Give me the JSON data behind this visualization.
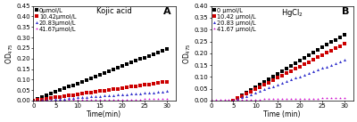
{
  "panel_A": {
    "title": "Kojic acid",
    "label": "A",
    "ylabel": "OD$_{475}$",
    "xlabel": "Time(min)",
    "xlim": [
      0,
      32
    ],
    "ylim": [
      0.0,
      0.45
    ],
    "yticks": [
      0.0,
      0.05,
      0.1,
      0.15,
      0.2,
      0.25,
      0.3,
      0.35,
      0.4,
      0.45
    ],
    "xticks": [
      0,
      5,
      10,
      15,
      20,
      25,
      30
    ],
    "series": [
      {
        "label": "0μmol/L",
        "color": "#000000",
        "marker": "s",
        "slope": 0.0082,
        "intercept": 0.0,
        "start": 0,
        "end": 30
      },
      {
        "label": "10.42μmol/L",
        "color": "#cc0000",
        "marker": "s",
        "slope": 0.003,
        "intercept": 0.0,
        "start": 0,
        "end": 30
      },
      {
        "label": "20.83μmol/L",
        "color": "#3333cc",
        "marker": "^",
        "slope": 0.00148,
        "intercept": 0.0,
        "start": 0,
        "end": 30
      },
      {
        "label": "41.67μmol/L",
        "color": "#cc00cc",
        "marker": "*",
        "slope": 0.00025,
        "intercept": 0.0,
        "start": 0,
        "end": 30
      }
    ]
  },
  "panel_B": {
    "title": "HgCl$_2$",
    "label": "B",
    "ylabel": "OD$_{475}$",
    "xlabel": "Time (min)",
    "xlim": [
      0,
      32
    ],
    "ylim": [
      0.0,
      0.4
    ],
    "yticks": [
      0.0,
      0.05,
      0.1,
      0.15,
      0.2,
      0.25,
      0.3,
      0.35,
      0.4
    ],
    "xticks": [
      0,
      5,
      10,
      15,
      20,
      25,
      30
    ],
    "series": [
      {
        "label": "0 μmol/L",
        "color": "#000000",
        "marker": "s",
        "slope": 0.0112,
        "intercept": -0.056,
        "start": 5,
        "end": 30
      },
      {
        "label": "10.42 μmol/L",
        "color": "#cc0000",
        "marker": "s",
        "slope": 0.0096,
        "intercept": -0.048,
        "start": 5,
        "end": 30
      },
      {
        "label": "20.83 μmol/L",
        "color": "#3333cc",
        "marker": "^",
        "slope": 0.0069,
        "intercept": -0.035,
        "start": 5,
        "end": 30
      },
      {
        "label": "41.67 μmol/L",
        "color": "#cc00cc",
        "marker": "*",
        "slope": 0.0003,
        "intercept": 0.002,
        "start": 0,
        "end": 30
      }
    ]
  },
  "fig_width": 4.0,
  "fig_height": 1.37,
  "dpi": 100,
  "background_color": "#ffffff",
  "marker_size": 2.2,
  "legend_fontsize": 4.8,
  "axis_fontsize": 5.5,
  "tick_fontsize": 5.0,
  "title_fontsize": 6.0,
  "label_fontsize": 8.0
}
